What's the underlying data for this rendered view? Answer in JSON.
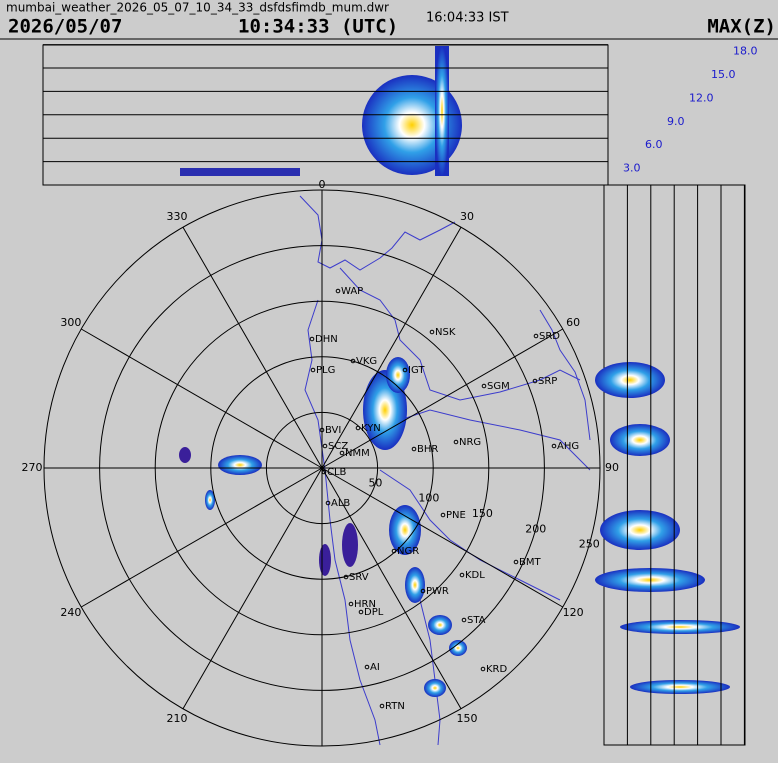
{
  "header": {
    "filename": "mumbai_weather_2026_05_07_10_34_33_dsfdsfimdb_mum.dwr",
    "date": "2026/05/07",
    "time_utc": "10:34:33 (UTC)",
    "time_ist": "16:04:33 IST",
    "product": "MAX(Z)"
  },
  "azimuth_labels": [
    0,
    30,
    60,
    90,
    120,
    150,
    210,
    240,
    270,
    300,
    330
  ],
  "range_rings": [
    50,
    100,
    150,
    200,
    250
  ],
  "height_labels": [
    {
      "value": 18,
      "label": "18.0"
    },
    {
      "value": 15,
      "label": "15.0"
    },
    {
      "value": 12,
      "label": "12.0"
    },
    {
      "value": 9,
      "label": "9.0"
    },
    {
      "value": 6,
      "label": "6.0"
    },
    {
      "value": 3,
      "label": "3.0"
    }
  ],
  "stations": [
    "WAP",
    "DHN",
    "NSK",
    "SRD",
    "PLG",
    "VKG",
    "IGT",
    "SGM",
    "SRP",
    "BVI",
    "KYN",
    "SCZ",
    "NMM",
    "BHR",
    "NRG",
    "AHG",
    "CLB",
    "ALB",
    "PNE",
    "NGR",
    "SRV",
    "KDL",
    "BMT",
    "HRN",
    "DPL",
    "PWR",
    "STA",
    "AI",
    "KRD",
    "RTN"
  ]
}
